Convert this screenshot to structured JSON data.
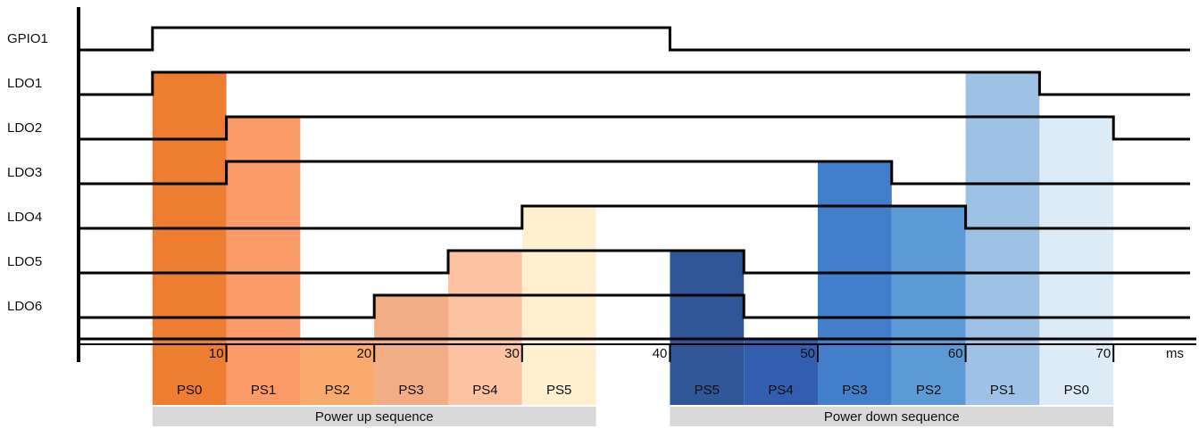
{
  "chart_data": {
    "type": "timing-diagram",
    "x_unit": "ms",
    "x_ticks": [
      10,
      20,
      30,
      40,
      50,
      60,
      70
    ],
    "signals": [
      {
        "name": "GPIO1",
        "high": [
          [
            5,
            40
          ]
        ]
      },
      {
        "name": "LDO1",
        "high": [
          [
            5,
            65
          ]
        ]
      },
      {
        "name": "LDO2",
        "high": [
          [
            10,
            70
          ]
        ]
      },
      {
        "name": "LDO3",
        "high": [
          [
            10,
            55
          ]
        ]
      },
      {
        "name": "LDO4",
        "high": [
          [
            30,
            60
          ]
        ]
      },
      {
        "name": "LDO5",
        "high": [
          [
            25,
            45
          ]
        ]
      },
      {
        "name": "LDO6",
        "high": [
          [
            20,
            45
          ]
        ]
      }
    ],
    "phases": [
      {
        "label": "PS0",
        "start": 5,
        "end": 10,
        "color": "#ED7D31"
      },
      {
        "label": "PS1",
        "start": 10,
        "end": 15,
        "color": "#FA9A67"
      },
      {
        "label": "PS2",
        "start": 15,
        "end": 20,
        "color": "#FBAA6D"
      },
      {
        "label": "PS3",
        "start": 20,
        "end": 25,
        "color": "#F2AD84"
      },
      {
        "label": "PS4",
        "start": 25,
        "end": 30,
        "color": "#FCC3A2"
      },
      {
        "label": "PS5",
        "start": 30,
        "end": 35,
        "color": "#FEF0CF"
      },
      {
        "label": "PS5",
        "start": 40,
        "end": 45,
        "color": "#2F5697"
      },
      {
        "label": "PS4",
        "start": 45,
        "end": 50,
        "color": "#335EB0"
      },
      {
        "label": "PS3",
        "start": 50,
        "end": 55,
        "color": "#437ECA"
      },
      {
        "label": "PS2",
        "start": 55,
        "end": 60,
        "color": "#5C9AD6"
      },
      {
        "label": "PS1",
        "start": 60,
        "end": 65,
        "color": "#9DC2E6"
      },
      {
        "label": "PS0",
        "start": 65,
        "end": 70,
        "color": "#DDEBF7"
      }
    ],
    "sequences": [
      {
        "label": "Power up sequence",
        "start": 5,
        "end": 35
      },
      {
        "label": "Power down sequence",
        "start": 40,
        "end": 70
      }
    ],
    "xlim": [
      0,
      75
    ]
  }
}
